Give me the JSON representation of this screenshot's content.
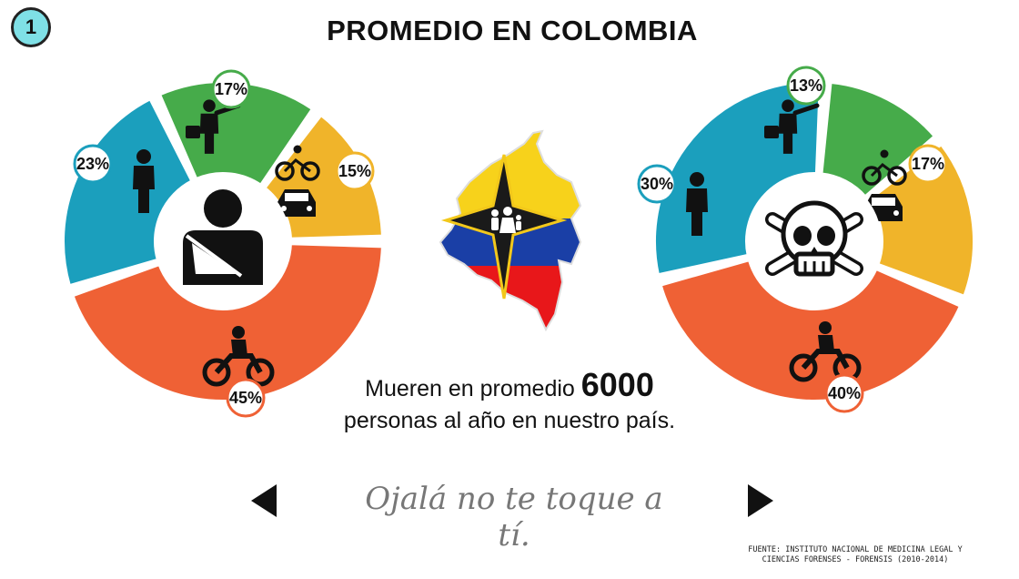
{
  "badge": "1",
  "title": "PROMEDIO EN COLOMBIA",
  "colors": {
    "pedestrian": "#1b9fbd",
    "passenger": "#46ab4a",
    "cyclist_driver": "#f0b42a",
    "motorcycle": "#ef6135"
  },
  "chart_data": [
    {
      "type": "pie",
      "center_icon": "injured-person-icon",
      "categories": [
        "motorcycle",
        "pedestrian",
        "passenger",
        "cyclist-and-car"
      ],
      "values": [
        45,
        23,
        17,
        15
      ],
      "labels": [
        "45%",
        "23%",
        "17%",
        "15%"
      ],
      "icons": [
        "motorcycle-icon",
        "pedestrian-icon",
        "passenger-icon",
        "bicycle-car-icon"
      ]
    },
    {
      "type": "pie",
      "center_icon": "skull-icon",
      "categories": [
        "motorcycle",
        "pedestrian",
        "passenger",
        "cyclist-and-car"
      ],
      "values": [
        40,
        30,
        13,
        17
      ],
      "labels": [
        "40%",
        "30%",
        "13%",
        "17%"
      ],
      "icons": [
        "motorcycle-icon",
        "pedestrian-icon",
        "passenger-icon",
        "bicycle-car-icon"
      ]
    }
  ],
  "caption": {
    "line1_prefix": "Mueren en promedio ",
    "number": "6000",
    "line2": "personas al año en nuestro país."
  },
  "slogan": "Ojalá no te toque a tí.",
  "nav": {
    "prev_icon": "triangle-left-icon",
    "next_icon": "triangle-right-icon"
  },
  "source": {
    "line1": "FUENTE: INSTITUTO NACIONAL DE MEDICINA LEGAL Y",
    "line2": "CIENCIAS FORENSES - FORENSIS (2010-2014)"
  }
}
